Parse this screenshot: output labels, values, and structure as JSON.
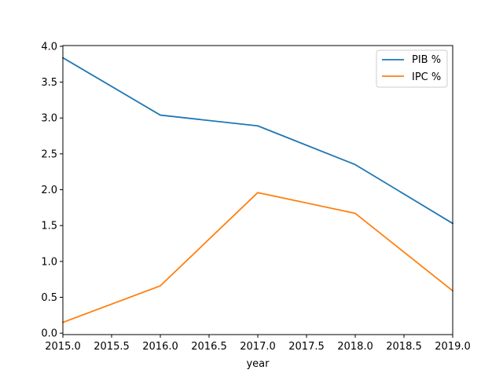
{
  "chart_data": {
    "type": "line",
    "title": "",
    "xlabel": "year",
    "ylabel": "",
    "x": [
      2015,
      2016,
      2017,
      2018,
      2019
    ],
    "xlim": [
      2015.0,
      2019.0
    ],
    "ylim": [
      -0.02,
      4.01
    ],
    "xticks": [
      "2015.0",
      "2015.5",
      "2016.0",
      "2016.5",
      "2017.0",
      "2017.5",
      "2018.0",
      "2018.5",
      "2019.0"
    ],
    "yticks": [
      "0.0",
      "0.5",
      "1.0",
      "1.5",
      "2.0",
      "2.5",
      "3.0",
      "3.5",
      "4.0"
    ],
    "grid": false,
    "legend_position": "top-right",
    "series": [
      {
        "name": "PIB %",
        "color": "#1f77b4",
        "values": [
          3.84,
          3.04,
          2.89,
          2.35,
          1.53
        ]
      },
      {
        "name": "IPC %",
        "color": "#ff7f0e",
        "values": [
          0.15,
          0.66,
          1.96,
          1.67,
          0.59
        ]
      }
    ]
  }
}
